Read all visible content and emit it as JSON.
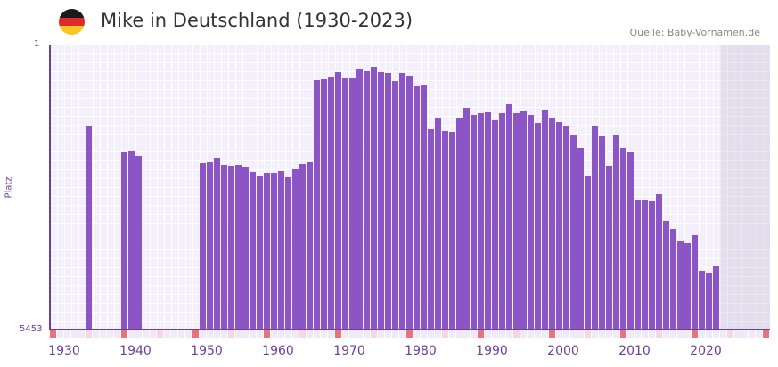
{
  "header": {
    "title": "Mike in Deutschland (1930-2023)",
    "source": "Quelle: Baby-Vornamen.de",
    "flag_colors": [
      "#1a1a1a",
      "#dd2b2b",
      "#f7c61f"
    ]
  },
  "colors": {
    "bar": "#8b55c6",
    "axis": "#6a3fa0",
    "marker_decade": "#e8737c",
    "marker_mid": "#f6d6e0"
  },
  "chart_data": {
    "type": "bar",
    "title": "Mike in Deutschland (1930-2023)",
    "xlabel": "",
    "ylabel": "Platz",
    "y_axis_inverted": true,
    "y_tick_top": "1",
    "y_tick_bottom": "5453",
    "ylim": [
      5453,
      1
    ],
    "x_range": [
      1930,
      2030
    ],
    "x_tick_labels": [
      "1930",
      "1940",
      "1950",
      "1960",
      "1970",
      "1980",
      "1990",
      "2000",
      "2010",
      "2020"
    ],
    "grid": true,
    "note": "values are bar heights in pixels (0-320 scale, 320 = rank 1)",
    "years": [
      1935,
      1940,
      1941,
      1942,
      1951,
      1952,
      1953,
      1954,
      1955,
      1956,
      1957,
      1958,
      1959,
      1960,
      1961,
      1962,
      1963,
      1964,
      1965,
      1966,
      1967,
      1968,
      1969,
      1970,
      1971,
      1972,
      1973,
      1974,
      1975,
      1976,
      1977,
      1978,
      1979,
      1980,
      1981,
      1982,
      1983,
      1984,
      1985,
      1986,
      1987,
      1988,
      1989,
      1990,
      1991,
      1992,
      1993,
      1994,
      1995,
      1996,
      1997,
      1998,
      1999,
      2000,
      2001,
      2002,
      2003,
      2004,
      2005,
      2006,
      2007,
      2008,
      2009,
      2010,
      2011,
      2012,
      2013,
      2014,
      2015,
      2016,
      2017,
      2018,
      2019,
      2020,
      2021,
      2022,
      2023
    ],
    "values": [
      228,
      199,
      200,
      195,
      187,
      188,
      193,
      185,
      184,
      185,
      183,
      177,
      172,
      176,
      176,
      178,
      171,
      180,
      186,
      188,
      280,
      281,
      284,
      289,
      282,
      282,
      293,
      290,
      295,
      289,
      288,
      279,
      288,
      285,
      274,
      275,
      225,
      238,
      223,
      222,
      238,
      249,
      241,
      243,
      244,
      235,
      243,
      253,
      243,
      245,
      241,
      232,
      246,
      238,
      233,
      229,
      218,
      204,
      172,
      229,
      217,
      184,
      218,
      204,
      199,
      145,
      145,
      144,
      152,
      122,
      113,
      99,
      97,
      106,
      66,
      64,
      71
    ]
  }
}
